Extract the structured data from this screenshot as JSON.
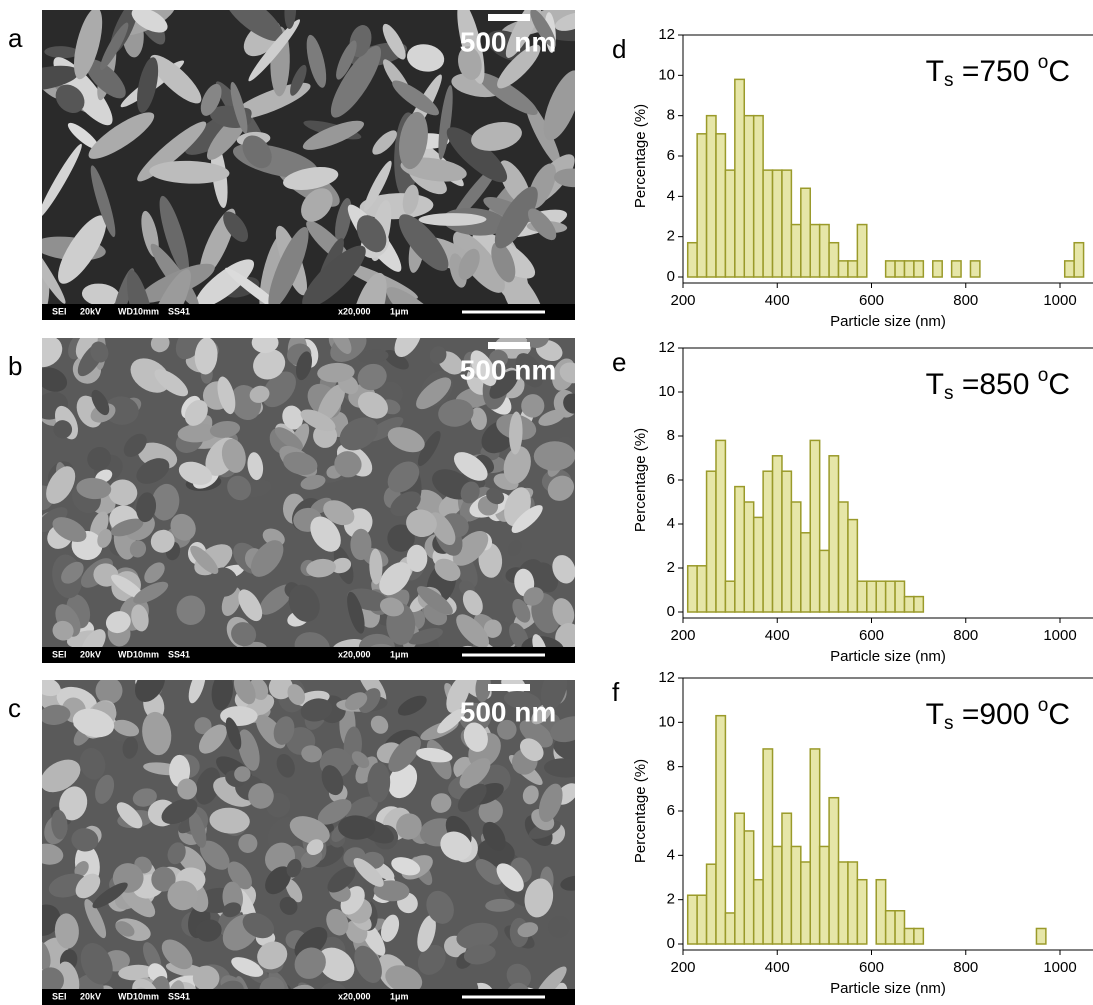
{
  "chart_data": [
    {
      "type": "histogram",
      "panel": "d",
      "title_parts": [
        "T",
        "s",
        " =750 ",
        "o",
        "C"
      ],
      "xlabel": "Particle size (nm)",
      "ylabel": "Percentage (%)",
      "color": "#e6e6a8",
      "edge": "#9a9a2a",
      "bins": [
        210,
        230,
        250,
        270,
        290,
        310,
        330,
        350,
        370,
        390,
        410,
        430,
        450,
        470,
        490,
        510,
        530,
        550,
        570,
        590,
        610,
        630,
        650,
        670,
        690,
        710,
        730,
        750,
        770,
        790,
        810,
        830,
        850,
        870,
        890,
        910,
        930,
        950,
        970,
        990,
        1010,
        1030,
        1050
      ],
      "values": [
        1.7,
        7.1,
        8.0,
        7.1,
        5.3,
        9.8,
        8.0,
        8.0,
        5.3,
        5.3,
        5.3,
        2.6,
        4.4,
        2.6,
        2.6,
        1.7,
        0.8,
        0.8,
        2.6,
        0,
        0,
        0.8,
        0.8,
        0.8,
        0.8,
        0,
        0.8,
        0,
        0.8,
        0,
        0.8,
        0,
        0,
        0,
        0,
        0,
        0,
        0,
        0,
        0,
        0.8,
        1.7
      ],
      "xlim": [
        200,
        1070
      ],
      "xticks": [
        200,
        400,
        600,
        800,
        1000
      ],
      "ylim": [
        0,
        12
      ],
      "yticks": [
        0,
        2,
        4,
        6,
        8,
        10,
        12
      ]
    },
    {
      "type": "histogram",
      "panel": "e",
      "title_parts": [
        "T",
        "s",
        " =850 ",
        "o",
        "C"
      ],
      "xlabel": "Particle size (nm)",
      "ylabel": "Percentage (%)",
      "color": "#e6e6a8",
      "edge": "#9a9a2a",
      "bins": [
        210,
        230,
        250,
        270,
        290,
        310,
        330,
        350,
        370,
        390,
        410,
        430,
        450,
        470,
        490,
        510,
        530,
        550,
        570,
        590,
        610,
        630,
        650,
        670,
        690,
        710,
        730,
        750,
        770,
        790,
        810,
        830,
        850,
        870,
        890,
        910,
        930,
        950,
        970,
        990,
        1010,
        1030,
        1050
      ],
      "values": [
        2.1,
        2.1,
        6.4,
        7.8,
        1.4,
        5.7,
        5.0,
        4.3,
        6.4,
        7.1,
        6.4,
        5.0,
        3.6,
        7.8,
        2.8,
        7.1,
        5.0,
        4.2,
        1.4,
        1.4,
        1.4,
        1.4,
        1.4,
        0.7,
        0.7,
        0,
        0,
        0,
        0,
        0,
        0,
        0,
        0,
        0,
        0,
        0,
        0,
        0,
        0,
        0,
        0,
        0
      ],
      "xlim": [
        200,
        1070
      ],
      "xticks": [
        200,
        400,
        600,
        800,
        1000
      ],
      "ylim": [
        0,
        12
      ],
      "yticks": [
        0,
        2,
        4,
        6,
        8,
        10,
        12
      ]
    },
    {
      "type": "histogram",
      "panel": "f",
      "title_parts": [
        "T",
        "s",
        " =900 ",
        "o",
        "C"
      ],
      "xlabel": "Particle size (nm)",
      "ylabel": "Percentage (%)",
      "color": "#e6e6a8",
      "edge": "#9a9a2a",
      "bins": [
        210,
        230,
        250,
        270,
        290,
        310,
        330,
        350,
        370,
        390,
        410,
        430,
        450,
        470,
        490,
        510,
        530,
        550,
        570,
        590,
        610,
        630,
        650,
        670,
        690,
        710,
        730,
        750,
        770,
        790,
        810,
        830,
        850,
        870,
        890,
        910,
        930,
        950,
        970,
        990,
        1010,
        1030,
        1050
      ],
      "values": [
        2.2,
        2.2,
        3.6,
        10.3,
        1.4,
        5.9,
        5.1,
        2.9,
        8.8,
        4.4,
        5.9,
        4.4,
        3.7,
        8.8,
        4.4,
        6.6,
        3.7,
        3.7,
        2.9,
        0,
        2.9,
        1.5,
        1.5,
        0.7,
        0.7,
        0,
        0,
        0,
        0,
        0,
        0,
        0,
        0,
        0,
        0,
        0,
        0,
        0.7,
        0,
        0,
        0,
        0
      ],
      "xlim": [
        200,
        1070
      ],
      "xticks": [
        200,
        400,
        600,
        800,
        1000
      ],
      "ylim": [
        0,
        12
      ],
      "yticks": [
        0,
        2,
        4,
        6,
        8,
        10,
        12
      ]
    }
  ],
  "images": [
    {
      "panel": "a",
      "scale": "500 nm",
      "footer": [
        "SEI",
        "20kV",
        "WD10mm",
        "SS41",
        "x20,000",
        "1μm"
      ]
    },
    {
      "panel": "b",
      "scale": "500 nm",
      "footer": [
        "SEI",
        "20kV",
        "WD10mm",
        "SS41",
        "x20,000",
        "1μm"
      ]
    },
    {
      "panel": "c",
      "scale": "500 nm",
      "footer": [
        "SEI",
        "20kV",
        "WD10mm",
        "SS41",
        "x20,000",
        "1μm"
      ]
    }
  ]
}
